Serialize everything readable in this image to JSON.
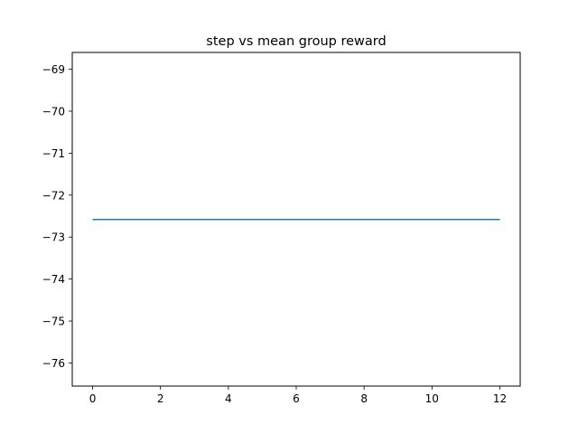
{
  "chart_data": {
    "type": "line",
    "title": "step vs mean group reward",
    "xlabel": "",
    "ylabel": "",
    "xlim": [
      -0.6,
      12.6
    ],
    "ylim": [
      -76.55,
      -68.6
    ],
    "x_ticks": [
      0,
      2,
      4,
      6,
      8,
      10,
      12
    ],
    "x_tick_labels": [
      "0",
      "2",
      "4",
      "6",
      "8",
      "10",
      "12"
    ],
    "y_ticks": [
      -69,
      -70,
      -71,
      -72,
      -73,
      -74,
      -75,
      -76
    ],
    "y_tick_labels": [
      "−69",
      "−70",
      "−71",
      "−72",
      "−73",
      "−74",
      "−75",
      "−76"
    ],
    "grid": false,
    "series": [
      {
        "color": "#1f77b4",
        "x": [
          0,
          1,
          2,
          3,
          4,
          5,
          6,
          7,
          8,
          9,
          10,
          11,
          12
        ],
        "y": [
          -72.58,
          -72.58,
          -72.58,
          -72.58,
          -72.58,
          -72.58,
          -72.58,
          -72.58,
          -72.58,
          -72.58,
          -72.58,
          -72.58,
          -72.58
        ]
      }
    ]
  }
}
